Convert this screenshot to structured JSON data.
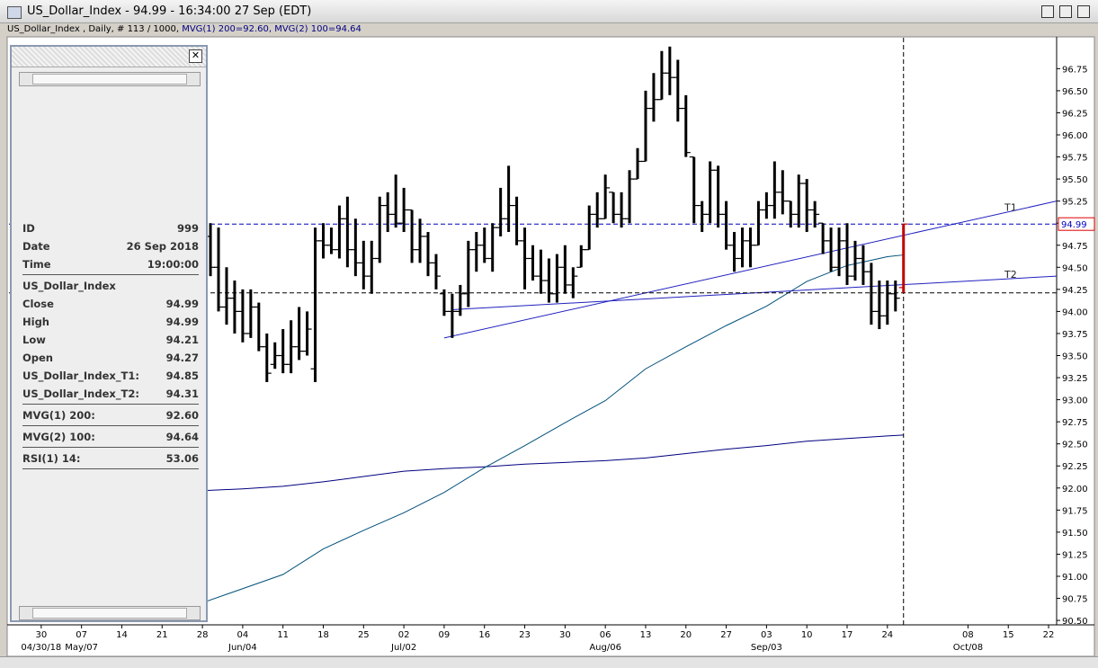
{
  "window": {
    "title": "US_Dollar_Index - 94.99 - 16:34:00  27 Sep (EDT)",
    "subtitle_parts": [
      {
        "text": "US_Dollar_Index , Daily, # 113 / 1000, ",
        "color": "#000000"
      },
      {
        "text": "MVG(1) 200=92.60, ",
        "color": "#000080"
      },
      {
        "text": "MVG(2) 100=94.64",
        "color": "#000080"
      }
    ]
  },
  "info_panel": {
    "groups": [
      [
        {
          "label": "ID",
          "value": "999"
        },
        {
          "label": "Date",
          "value": "26 Sep 2018"
        },
        {
          "label": "Time",
          "value": "19:00:00"
        }
      ],
      [
        {
          "label": "US_Dollar_Index"
        },
        {
          "label": "Close",
          "value": "94.99"
        },
        {
          "label": "High",
          "value": "94.99"
        },
        {
          "label": "Low",
          "value": "94.21"
        },
        {
          "label": "Open",
          "value": "94.27"
        },
        {
          "label": "US_Dollar_Index_T1:",
          "value": "94.85"
        },
        {
          "label": "US_Dollar_Index_T2:",
          "value": "94.31"
        }
      ],
      [
        {
          "label": "MVG(1) 200:",
          "value": "92.60"
        }
      ],
      [
        {
          "label": "MVG(2) 100:",
          "value": "94.64"
        }
      ],
      [
        {
          "label": "RSI(1) 14:",
          "value": "53.06"
        }
      ]
    ]
  },
  "chart_data": {
    "type": "ohlc",
    "bar_color": "#000000",
    "last_bar_color": "#c00000",
    "x": [
      "2018-05-29",
      "2018-05-30",
      "2018-05-31",
      "2018-06-01",
      "2018-06-04",
      "2018-06-05",
      "2018-06-06",
      "2018-06-07",
      "2018-06-08",
      "2018-06-11",
      "2018-06-12",
      "2018-06-13",
      "2018-06-14",
      "2018-06-15",
      "2018-06-18",
      "2018-06-19",
      "2018-06-20",
      "2018-06-21",
      "2018-06-22",
      "2018-06-25",
      "2018-06-26",
      "2018-06-27",
      "2018-06-28",
      "2018-06-29",
      "2018-07-02",
      "2018-07-03",
      "2018-07-04",
      "2018-07-05",
      "2018-07-06",
      "2018-07-09",
      "2018-07-10",
      "2018-07-11",
      "2018-07-12",
      "2018-07-13",
      "2018-07-16",
      "2018-07-17",
      "2018-07-18",
      "2018-07-19",
      "2018-07-20",
      "2018-07-23",
      "2018-07-24",
      "2018-07-25",
      "2018-07-26",
      "2018-07-27",
      "2018-07-30",
      "2018-07-31",
      "2018-08-01",
      "2018-08-02",
      "2018-08-03",
      "2018-08-06",
      "2018-08-07",
      "2018-08-08",
      "2018-08-09",
      "2018-08-10",
      "2018-08-13",
      "2018-08-14",
      "2018-08-15",
      "2018-08-16",
      "2018-08-17",
      "2018-08-20",
      "2018-08-21",
      "2018-08-22",
      "2018-08-23",
      "2018-08-24",
      "2018-08-27",
      "2018-08-28",
      "2018-08-29",
      "2018-08-30",
      "2018-08-31",
      "2018-09-03",
      "2018-09-04",
      "2018-09-05",
      "2018-09-06",
      "2018-09-07",
      "2018-09-10",
      "2018-09-11",
      "2018-09-12",
      "2018-09-13",
      "2018-09-14",
      "2018-09-17",
      "2018-09-18",
      "2018-09-19",
      "2018-09-20",
      "2018-09-21",
      "2018-09-24",
      "2018-09-25",
      "2018-09-26"
    ],
    "open": [
      94.85,
      94.5,
      94.05,
      94.15,
      94.0,
      93.75,
      94.05,
      93.6,
      93.4,
      93.5,
      93.4,
      93.6,
      93.55,
      93.35,
      94.8,
      94.75,
      94.7,
      95.05,
      94.7,
      94.55,
      94.4,
      94.6,
      95.2,
      95.1,
      95.0,
      95.15,
      94.7,
      94.85,
      94.55,
      94.2,
      94.0,
      94.0,
      94.2,
      94.7,
      94.75,
      94.6,
      94.95,
      95.05,
      95.2,
      94.8,
      94.6,
      94.4,
      94.35,
      94.2,
      94.5,
      94.3,
      94.5,
      94.7,
      95.1,
      95.05,
      95.35,
      95.1,
      95.05,
      95.5,
      95.7,
      96.3,
      96.4,
      96.7,
      96.65,
      96.3,
      95.75,
      95.2,
      95.1,
      95.6,
      95.1,
      94.75,
      94.6,
      94.8,
      94.75,
      95.15,
      95.2,
      95.35,
      95.25,
      95.1,
      95.45,
      95.15,
      95.0,
      94.8,
      94.5,
      94.8,
      94.4,
      94.6,
      94.45,
      94.0,
      93.95,
      94.2,
      94.27
    ],
    "high": [
      95.0,
      94.95,
      94.5,
      94.35,
      94.25,
      94.25,
      94.1,
      93.75,
      93.65,
      93.8,
      93.9,
      94.05,
      94.0,
      94.95,
      95.0,
      94.95,
      95.2,
      95.3,
      95.05,
      94.8,
      94.8,
      95.3,
      95.35,
      95.55,
      95.4,
      95.15,
      95.05,
      94.9,
      94.65,
      94.25,
      94.2,
      94.3,
      94.8,
      94.9,
      94.95,
      95.0,
      95.4,
      95.65,
      95.3,
      94.95,
      94.75,
      94.7,
      94.6,
      94.65,
      94.75,
      94.5,
      94.75,
      95.2,
      95.35,
      95.55,
      95.35,
      95.35,
      95.6,
      95.85,
      96.5,
      96.7,
      96.95,
      97.0,
      96.85,
      96.45,
      95.75,
      95.25,
      95.7,
      95.65,
      95.25,
      94.9,
      94.95,
      94.95,
      95.25,
      95.35,
      95.7,
      95.6,
      95.25,
      95.55,
      95.5,
      95.25,
      95.0,
      94.95,
      94.95,
      95.0,
      94.8,
      94.75,
      94.55,
      94.35,
      94.35,
      94.35,
      94.99
    ],
    "low": [
      94.4,
      94.0,
      93.85,
      93.75,
      93.65,
      93.7,
      93.55,
      93.2,
      93.35,
      93.3,
      93.3,
      93.45,
      93.5,
      93.2,
      94.6,
      94.65,
      94.6,
      94.5,
      94.4,
      94.25,
      94.2,
      94.55,
      94.9,
      94.95,
      94.9,
      94.55,
      94.55,
      94.4,
      94.25,
      93.95,
      93.7,
      93.95,
      94.05,
      94.45,
      94.55,
      94.45,
      94.85,
      94.9,
      94.75,
      94.25,
      94.35,
      94.2,
      94.1,
      94.1,
      94.2,
      94.15,
      94.5,
      94.7,
      94.95,
      95.05,
      95.0,
      94.95,
      95.0,
      95.5,
      95.7,
      96.15,
      96.4,
      96.45,
      96.15,
      95.75,
      95.0,
      94.9,
      95.0,
      94.95,
      94.7,
      94.45,
      94.5,
      94.5,
      94.75,
      95.05,
      95.05,
      95.1,
      94.95,
      94.95,
      94.9,
      94.95,
      94.65,
      94.45,
      94.4,
      94.3,
      94.35,
      94.3,
      93.85,
      93.8,
      93.85,
      94.0,
      94.21
    ],
    "close": [
      94.5,
      94.05,
      94.15,
      94.0,
      93.75,
      94.05,
      93.6,
      93.3,
      93.5,
      93.4,
      93.6,
      93.55,
      93.8,
      94.8,
      94.75,
      94.7,
      95.05,
      94.7,
      94.55,
      94.4,
      94.6,
      95.2,
      95.1,
      95.0,
      95.15,
      94.7,
      94.85,
      94.55,
      94.4,
      94.0,
      94.0,
      94.2,
      94.7,
      94.75,
      94.6,
      94.95,
      95.05,
      95.2,
      94.8,
      94.6,
      94.4,
      94.35,
      94.2,
      94.5,
      94.3,
      94.4,
      94.7,
      95.1,
      95.05,
      95.4,
      95.1,
      95.05,
      95.5,
      95.7,
      96.3,
      96.4,
      96.7,
      96.65,
      96.3,
      95.8,
      95.2,
      95.1,
      95.6,
      95.1,
      94.75,
      94.6,
      94.8,
      94.75,
      95.15,
      95.2,
      95.35,
      95.25,
      95.1,
      95.45,
      95.15,
      95.1,
      94.8,
      94.5,
      94.8,
      94.4,
      94.6,
      94.45,
      94.0,
      93.95,
      94.2,
      94.15,
      94.99
    ],
    "series": [
      {
        "color": "#000080",
        "x": [
          "2018-05-28",
          "2018-06-04",
          "2018-06-11",
          "2018-06-18",
          "2018-06-25",
          "2018-07-02",
          "2018-07-09",
          "2018-07-16",
          "2018-07-23",
          "2018-07-30",
          "2018-08-06",
          "2018-08-13",
          "2018-08-20",
          "2018-08-27",
          "2018-09-03",
          "2018-09-10",
          "2018-09-17",
          "2018-09-24",
          "2018-09-26"
        ],
        "values": [
          91.97,
          91.99,
          92.02,
          92.07,
          92.13,
          92.19,
          92.22,
          92.24,
          92.27,
          92.29,
          92.31,
          92.34,
          92.39,
          92.44,
          92.48,
          92.53,
          92.56,
          92.59,
          92.6
        ]
      },
      {
        "color": "#00507a",
        "x": [
          "2018-05-28",
          "2018-06-04",
          "2018-06-11",
          "2018-06-18",
          "2018-06-25",
          "2018-07-02",
          "2018-07-09",
          "2018-07-16",
          "2018-07-23",
          "2018-07-30",
          "2018-08-06",
          "2018-08-13",
          "2018-08-20",
          "2018-08-27",
          "2018-09-03",
          "2018-09-10",
          "2018-09-17",
          "2018-09-24",
          "2018-09-26"
        ],
        "values": [
          90.7,
          90.86,
          91.02,
          91.31,
          91.52,
          91.72,
          91.95,
          92.23,
          92.48,
          92.74,
          92.99,
          93.35,
          93.6,
          93.84,
          94.06,
          94.34,
          94.52,
          94.62,
          94.64
        ]
      },
      {
        "name": "T1",
        "color": "#2020c0",
        "x": [
          "2018-07-09",
          "2018-10-23"
        ],
        "values": [
          93.7,
          95.25
        ]
      },
      {
        "name": "T2",
        "color": "#2020c0",
        "x": [
          "2018-07-10",
          "2018-10-23"
        ],
        "values": [
          94.02,
          94.4
        ]
      }
    ],
    "hlines": [
      {
        "value": 94.99,
        "color": "#0000c0",
        "tag_border": "#e00000"
      },
      {
        "value": 94.21,
        "color": "#000000"
      }
    ],
    "vline": {
      "x": "2018-09-26",
      "color": "#000000"
    },
    "xlim": [
      "2018-04-24",
      "2018-10-23"
    ],
    "ylim": [
      90.45,
      97.1
    ],
    "yticks": [
      {
        "value": 90.5,
        "label": "90.50"
      },
      90.75,
      {
        "value": 91,
        "label": "91.00"
      },
      91.25,
      {
        "value": 91.5,
        "label": "91.50"
      },
      91.75,
      {
        "value": 92,
        "label": "92.00"
      },
      92.25,
      {
        "value": 92.5,
        "label": "92.50"
      },
      92.75,
      {
        "value": 93,
        "label": "93.00"
      },
      93.25,
      {
        "value": 93.5,
        "label": "93.50"
      },
      93.75,
      {
        "value": 94,
        "label": "94.00"
      },
      94.25,
      {
        "value": 94.5,
        "label": "94.50"
      },
      94.75,
      {
        "value": 95,
        "label": "95.00"
      },
      95.25,
      {
        "value": 95.5,
        "label": "95.50"
      },
      95.75,
      {
        "value": 96,
        "label": "96.00"
      },
      96.25,
      {
        "value": 96.5,
        "label": "96.50"
      },
      96.75
    ],
    "xticks": [
      {
        "value": "2018-04-30",
        "label": "30"
      },
      {
        "value": "2018-05-07",
        "label": "07"
      },
      {
        "value": "2018-05-14",
        "label": "14"
      },
      {
        "value": "2018-05-21",
        "label": "21"
      },
      {
        "value": "2018-05-28",
        "label": "28"
      },
      {
        "value": "2018-06-04",
        "label": "04"
      },
      {
        "value": "2018-06-11",
        "label": "11"
      },
      {
        "value": "2018-06-18",
        "label": "18"
      },
      {
        "value": "2018-06-25",
        "label": "25"
      },
      {
        "value": "2018-07-02",
        "label": "02"
      },
      {
        "value": "2018-07-09",
        "label": "09"
      },
      {
        "value": "2018-07-16",
        "label": "16"
      },
      {
        "value": "2018-07-23",
        "label": "23"
      },
      {
        "value": "2018-07-30",
        "label": "30"
      },
      {
        "value": "2018-08-06",
        "label": "06"
      },
      {
        "value": "2018-08-13",
        "label": "13"
      },
      {
        "value": "2018-08-20",
        "label": "20"
      },
      {
        "value": "2018-08-27",
        "label": "27"
      },
      {
        "value": "2018-09-03",
        "label": "03"
      },
      {
        "value": "2018-09-10",
        "label": "10"
      },
      {
        "value": "2018-09-17",
        "label": "17"
      },
      {
        "value": "2018-09-24",
        "label": "24"
      },
      {
        "value": "2018-10-08",
        "label": "08"
      },
      {
        "value": "2018-10-15",
        "label": "15"
      },
      {
        "value": "2018-10-22",
        "label": "22"
      }
    ],
    "month_labels": [
      {
        "value": "2018-04-30",
        "label": "04/30/18"
      },
      {
        "value": "2018-05-07",
        "label": "May/07"
      },
      {
        "value": "2018-06-04",
        "label": "Jun/04"
      },
      {
        "value": "2018-07-02",
        "label": "Jul/02"
      },
      {
        "value": "2018-08-06",
        "label": "Aug/06"
      },
      {
        "value": "2018-09-03",
        "label": "Sep/03"
      },
      {
        "value": "2018-10-08",
        "label": "Oct/08"
      }
    ]
  }
}
